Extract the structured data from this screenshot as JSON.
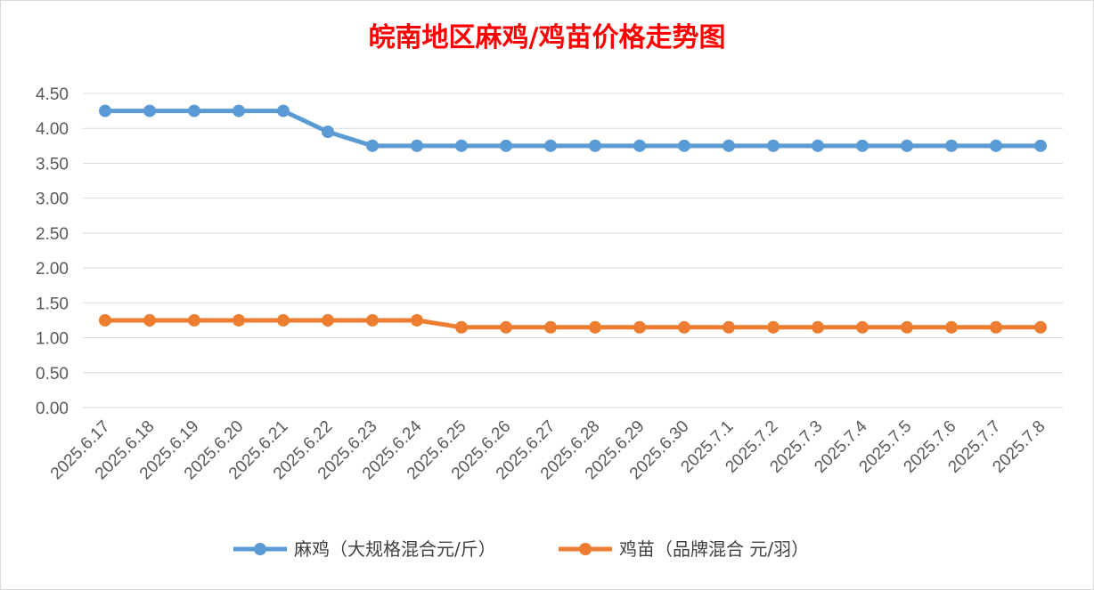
{
  "chart_data": {
    "type": "line",
    "title": "皖南地区麻鸡/鸡苗价格走势图",
    "title_color": "#FF0000",
    "categories": [
      "2025.6.17",
      "2025.6.18",
      "2025.6.19",
      "2025.6.20",
      "2025.6.21",
      "2025.6.22",
      "2025.6.23",
      "2025.6.24",
      "2025.6.25",
      "2025.6.26",
      "2025.6.27",
      "2025.6.28",
      "2025.6.29",
      "2025.6.30",
      "2025.7.1",
      "2025.7.2",
      "2025.7.3",
      "2025.7.4",
      "2025.7.5",
      "2025.7.6",
      "2025.7.7",
      "2025.7.8"
    ],
    "series": [
      {
        "name": "麻鸡（大规格混合元/斤）",
        "color": "#5B9BD5",
        "values": [
          4.25,
          4.25,
          4.25,
          4.25,
          4.25,
          3.95,
          3.75,
          3.75,
          3.75,
          3.75,
          3.75,
          3.75,
          3.75,
          3.75,
          3.75,
          3.75,
          3.75,
          3.75,
          3.75,
          3.75,
          3.75,
          3.75
        ]
      },
      {
        "name": "鸡苗（品牌混合 元/羽）",
        "color": "#ED7D31",
        "values": [
          1.25,
          1.25,
          1.25,
          1.25,
          1.25,
          1.25,
          1.25,
          1.25,
          1.15,
          1.15,
          1.15,
          1.15,
          1.15,
          1.15,
          1.15,
          1.15,
          1.15,
          1.15,
          1.15,
          1.15,
          1.15,
          1.15
        ]
      }
    ],
    "y_ticks": [
      "0.00",
      "0.50",
      "1.00",
      "1.50",
      "2.00",
      "2.50",
      "3.00",
      "3.50",
      "4.00",
      "4.50"
    ],
    "ylim": [
      0,
      4.5
    ],
    "grid": true,
    "legend_position": "bottom",
    "xlabel": "",
    "ylabel": ""
  }
}
